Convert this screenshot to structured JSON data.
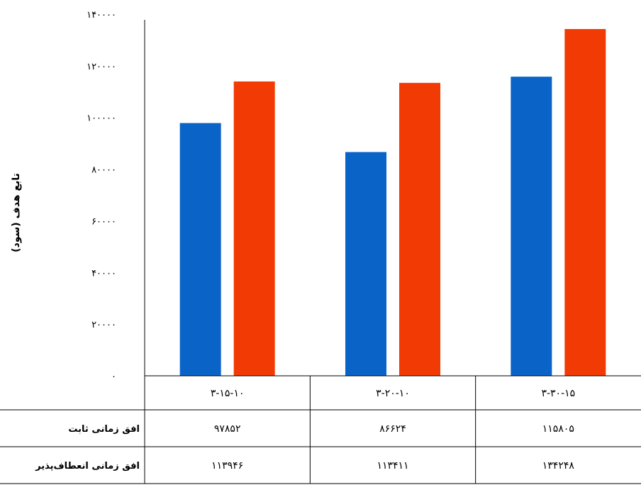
{
  "chart_data": {
    "type": "bar",
    "ylabel": "تابع هدف (سود)",
    "ylim": [
      0,
      140000
    ],
    "yticks": [
      "۰",
      "۲۰۰۰۰",
      "۴۰۰۰۰",
      "۶۰۰۰۰",
      "۸۰۰۰۰",
      "۱۰۰۰۰۰",
      "۱۲۰۰۰۰",
      "۱۴۰۰۰۰"
    ],
    "ytick_values": [
      0,
      20000,
      40000,
      60000,
      80000,
      100000,
      120000,
      140000
    ],
    "categories": [
      "۳-۱۵-۱۰",
      "۳-۲۰-۱۰",
      "۳-۳۰-۱۵"
    ],
    "series": [
      {
        "name": "افق زمانی ثابت",
        "color": "#0a64c8",
        "values": [
          97852,
          86624,
          115805
        ],
        "labels": [
          "۹۷۸۵۲",
          "۸۶۶۲۴",
          "۱۱۵۸۰۵"
        ]
      },
      {
        "name": "افق زمانی انعطاف‌پذیر",
        "color": "#f23a05",
        "values": [
          113946,
          113411,
          134248
        ],
        "labels": [
          "۱۱۳۹۴۶",
          "۱۱۳۴۱۱",
          "۱۳۴۲۴۸"
        ]
      }
    ],
    "grid": false,
    "legend": "data-table-below"
  }
}
